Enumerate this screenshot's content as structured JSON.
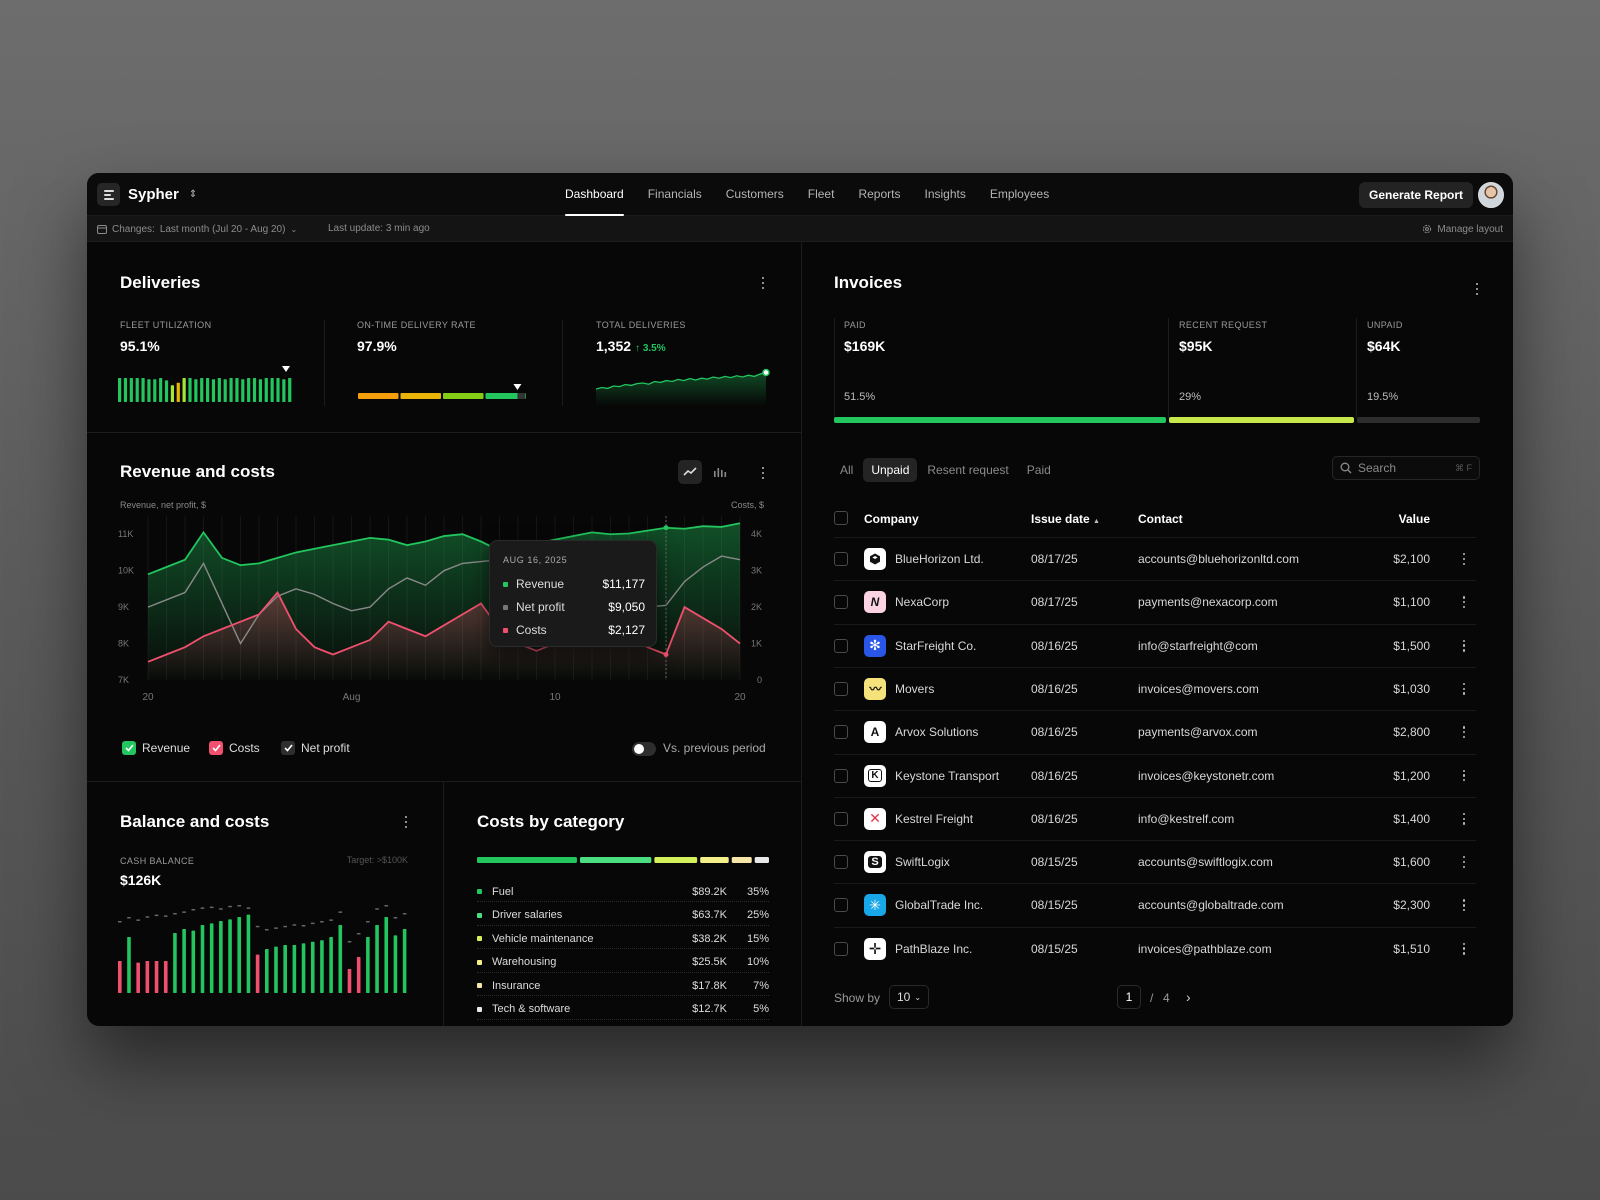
{
  "app": {
    "name": "Sypher"
  },
  "nav": {
    "items": [
      "Dashboard",
      "Financials",
      "Customers",
      "Fleet",
      "Reports",
      "Insights",
      "Employees"
    ],
    "active": "Dashboard"
  },
  "header": {
    "generate_report": "Generate Report"
  },
  "subbar": {
    "changes": "Changes:",
    "period": "Last month (Jul 20 - Aug 20)",
    "last_update": "Last update: 3 min ago",
    "manage_layout": "Manage layout"
  },
  "deliveries": {
    "title": "Deliveries",
    "fleet_utilization": {
      "label": "FLEET UTILIZATION",
      "value": "95.1%"
    },
    "on_time": {
      "label": "ON-TIME DELIVERY RATE",
      "value": "97.9%",
      "level": 0.979
    },
    "total": {
      "label": "TOTAL DELIVERIES",
      "value": "1,352",
      "delta": "↑ 3.5%"
    }
  },
  "revenue": {
    "title": "Revenue and costs",
    "left_axis_label": "Revenue, net profit, $",
    "right_axis_label": "Costs, $",
    "legend": {
      "revenue": "Revenue",
      "costs": "Costs",
      "net_profit": "Net profit"
    },
    "vs_previous": "Vs. previous period",
    "tooltip": {
      "date": "AUG 16, 2025",
      "revenue_label": "Revenue",
      "revenue": "$11,177",
      "net_label": "Net profit",
      "net": "$9,050",
      "costs_label": "Costs",
      "costs": "$2,127"
    }
  },
  "balance": {
    "title": "Balance and costs",
    "label": "CASH BALANCE",
    "value": "$126K",
    "target": "Target: >$100K"
  },
  "costs_category": {
    "title": "Costs by category",
    "items": [
      {
        "name": "Fuel",
        "value": "$89.2K",
        "pct": "35%",
        "color": "#22c55e"
      },
      {
        "name": "Driver salaries",
        "value": "$63.7K",
        "pct": "25%",
        "color": "#4ade80"
      },
      {
        "name": "Vehicle maintenance",
        "value": "$38.2K",
        "pct": "15%",
        "color": "#d4f05a"
      },
      {
        "name": "Warehousing",
        "value": "$25.5K",
        "pct": "10%",
        "color": "#f5ef8a"
      },
      {
        "name": "Insurance",
        "value": "$17.8K",
        "pct": "7%",
        "color": "#f6e7a8"
      },
      {
        "name": "Tech & software",
        "value": "$12.7K",
        "pct": "5%",
        "color": "#e8e8e8"
      }
    ]
  },
  "invoices": {
    "title": "Invoices",
    "paid": {
      "label": "PAID",
      "value": "$169K",
      "pct": "51.5%"
    },
    "recent": {
      "label": "RECENT REQUEST",
      "value": "$95K",
      "pct": "29%"
    },
    "unpaid": {
      "label": "UNPAID",
      "value": "$64K",
      "pct": "19.5%"
    },
    "tabs": [
      "All",
      "Unpaid",
      "Resent request",
      "Paid"
    ],
    "active_tab": "Unpaid",
    "search_placeholder": "Search",
    "search_kbd": "⌘ F",
    "columns": {
      "company": "Company",
      "issue_date": "Issue date",
      "contact": "Contact",
      "value": "Value"
    },
    "rows": [
      {
        "company": "BlueHorizon Ltd.",
        "date": "08/17/25",
        "contact": "accounts@bluehorizonltd.com",
        "value": "$2,100",
        "logo_bg": "#ffffff",
        "logo_fg": "#111",
        "logo_icon": "hexagon-icon"
      },
      {
        "company": "NexaCorp",
        "date": "08/17/25",
        "contact": "payments@nexacorp.com",
        "value": "$1,100",
        "logo_bg": "#fbd3e3",
        "logo_fg": "#111",
        "logo_icon": "n-letter-icon"
      },
      {
        "company": "StarFreight Co.",
        "date": "08/16/25",
        "contact": "info@starfreight@com",
        "value": "$1,500",
        "logo_bg": "#2a56e8",
        "logo_fg": "#fff",
        "logo_icon": "snowflake-icon"
      },
      {
        "company": "Movers",
        "date": "08/16/25",
        "contact": "invoices@movers.com",
        "value": "$1,030",
        "logo_bg": "#f6e27a",
        "logo_fg": "#111",
        "logo_icon": "wave-icon"
      },
      {
        "company": "Arvox Solutions",
        "date": "08/16/25",
        "contact": "payments@arvox.com",
        "value": "$2,800",
        "logo_bg": "#ffffff",
        "logo_fg": "#111",
        "logo_icon": "a-letter-icon"
      },
      {
        "company": "Keystone Transport",
        "date": "08/16/25",
        "contact": "invoices@keystonetr.com",
        "value": "$1,200",
        "logo_bg": "#ffffff",
        "logo_fg": "#111",
        "logo_icon": "k-letter-icon"
      },
      {
        "company": "Kestrel Freight",
        "date": "08/16/25",
        "contact": "info@kestrelf.com",
        "value": "$1,400",
        "logo_bg": "#ffffff",
        "logo_fg": "#e0364b",
        "logo_icon": "x-cross-icon"
      },
      {
        "company": "SwiftLogix",
        "date": "08/15/25",
        "contact": "accounts@swiftlogix.com",
        "value": "$1,600",
        "logo_bg": "#ffffff",
        "logo_fg": "#111",
        "logo_icon": "s-letter-icon"
      },
      {
        "company": "GlobalTrade Inc.",
        "date": "08/15/25",
        "contact": "accounts@globaltrade.com",
        "value": "$2,300",
        "logo_bg": "#18a7e8",
        "logo_fg": "#fff",
        "logo_icon": "asterisk-icon"
      },
      {
        "company": "PathBlaze Inc.",
        "date": "08/15/25",
        "contact": "invoices@pathblaze.com",
        "value": "$1,510",
        "logo_bg": "#ffffff",
        "logo_fg": "#111",
        "logo_icon": "plus-icon"
      }
    ],
    "show_by_label": "Show by",
    "show_by_value": "10",
    "page": "1",
    "page_sep": "/",
    "page_total": "4"
  },
  "chart_data": [
    {
      "type": "line",
      "title": "Revenue and costs",
      "x_tick_labels": [
        "20",
        "Aug",
        "10",
        "20"
      ],
      "left_axis": {
        "label": "Revenue, net profit, $",
        "ticks": [
          "7K",
          "8K",
          "9K",
          "10K",
          "11K"
        ],
        "ylim": [
          7000,
          11500
        ]
      },
      "right_axis": {
        "label": "Costs, $",
        "ticks": [
          "0",
          "1K",
          "2K",
          "3K",
          "4K"
        ],
        "ylim": [
          0,
          4200
        ]
      },
      "x_days": 32,
      "series": [
        {
          "name": "Revenue",
          "axis": "left",
          "color": "#22c55e",
          "values": [
            9900,
            10100,
            10300,
            11050,
            10350,
            10150,
            10200,
            10350,
            10500,
            10600,
            10700,
            10800,
            10900,
            10850,
            10700,
            10800,
            10950,
            11000,
            10800,
            10550,
            10650,
            10750,
            10850,
            10950,
            11050,
            11000,
            11020,
            11100,
            11177,
            11150,
            11220,
            11200,
            11300
          ]
        },
        {
          "name": "Net profit",
          "axis": "left",
          "color": "#8a8a8a",
          "values": [
            9000,
            9200,
            9400,
            10200,
            9100,
            8000,
            8800,
            9300,
            9500,
            9350,
            9100,
            8900,
            9000,
            9500,
            9800,
            9600,
            10000,
            10200,
            10250,
            10300,
            9500,
            9100,
            9000,
            9600,
            8000,
            9700,
            9100,
            9000,
            9050,
            9700,
            10100,
            10400,
            10300
          ]
        },
        {
          "name": "Costs",
          "axis": "left_scaled",
          "color": "#f0506e",
          "values": [
            7500,
            7700,
            7900,
            8200,
            8400,
            8600,
            8800,
            9400,
            8400,
            7900,
            7700,
            7900,
            8100,
            8600,
            8400,
            8200,
            8500,
            8800,
            9100,
            8400,
            8000,
            7800,
            8000,
            8100,
            8300,
            8500,
            8200,
            7900,
            7700,
            9000,
            8700,
            8400,
            8000
          ]
        }
      ],
      "tooltip_day": 28
    },
    {
      "type": "bar",
      "title": "Fleet utilization",
      "values": [
        1,
        1,
        1,
        1,
        1,
        0.95,
        0.95,
        1,
        0.9,
        0.7,
        0.8,
        1,
        1,
        0.95,
        1,
        1,
        0.95,
        1,
        0.95,
        1,
        1,
        0.95,
        1,
        1,
        0.95,
        1,
        1,
        1,
        0.95,
        1
      ],
      "highlight_indices": [
        9,
        10,
        11
      ]
    },
    {
      "type": "bar",
      "title": "Cash balance",
      "values": [
        0.4,
        0.7,
        0.38,
        0.4,
        0.4,
        0.4,
        0.75,
        0.8,
        0.78,
        0.85,
        0.87,
        0.9,
        0.92,
        0.95,
        0.98,
        0.48,
        0.55,
        0.58,
        0.6,
        0.6,
        0.62,
        0.64,
        0.66,
        0.7,
        0.85,
        0.3,
        0.45,
        0.7,
        0.85,
        0.95,
        0.72,
        0.8
      ],
      "negative_indices": [
        0,
        2,
        3,
        4,
        5,
        15,
        25,
        26
      ],
      "target_values": [
        0.8,
        0.85,
        0.82,
        0.86,
        0.88,
        0.87,
        0.9,
        0.92,
        0.95,
        0.97,
        0.98,
        0.96,
        0.99,
        1.0,
        0.97,
        0.74,
        0.7,
        0.72,
        0.74,
        0.76,
        0.75,
        0.78,
        0.8,
        0.82,
        0.92,
        0.55,
        0.65,
        0.8,
        0.96,
        1.0,
        0.85,
        0.9
      ]
    },
    {
      "type": "line",
      "title": "Total deliveries",
      "values": [
        0.3,
        0.35,
        0.32,
        0.4,
        0.38,
        0.45,
        0.42,
        0.48,
        0.5,
        0.46,
        0.55,
        0.52,
        0.58,
        0.55,
        0.62,
        0.58,
        0.65,
        0.6,
        0.66,
        0.63,
        0.7,
        0.66,
        0.72,
        0.68,
        0.74,
        0.7,
        0.76,
        0.72,
        0.8,
        0.85
      ]
    }
  ]
}
